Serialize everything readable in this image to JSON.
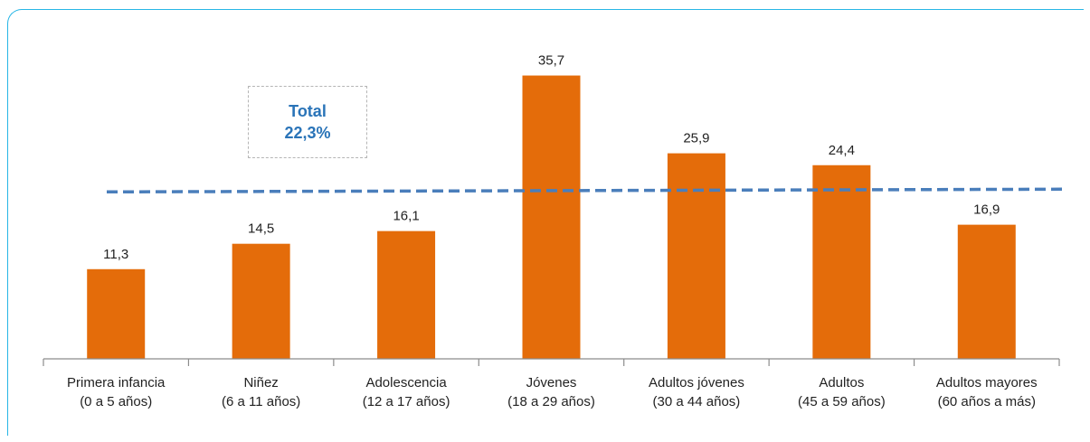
{
  "chart_data": {
    "type": "bar",
    "categories": [
      [
        "Primera infancia",
        "(0 a 5 años)"
      ],
      [
        "Niñez",
        "(6 a 11 años)"
      ],
      [
        "Adolescencia",
        "(12 a 17 años)"
      ],
      [
        "Jóvenes",
        "(18 a 29 años)"
      ],
      [
        "Adultos jóvenes",
        "(30 a 44 años)"
      ],
      [
        "Adultos",
        "(45 a 59 años)"
      ],
      [
        "Adultos mayores",
        "(60 años a más)"
      ]
    ],
    "values": [
      11.3,
      14.5,
      16.1,
      35.7,
      25.9,
      24.4,
      16.9
    ],
    "value_labels": [
      "11,3",
      "14,5",
      "16,1",
      "35,7",
      "25,9",
      "24,4",
      "16,9"
    ],
    "reference_line": {
      "value": 22.3
    },
    "total_box": {
      "line1": "Total",
      "line2": "22,3%"
    },
    "ylim": [
      0,
      40
    ],
    "grid": false,
    "colors": {
      "bar": "#e46c0a",
      "reference": "#4a7ebb",
      "frame": "#27b6e6",
      "total_text": "#2a74b8"
    }
  }
}
